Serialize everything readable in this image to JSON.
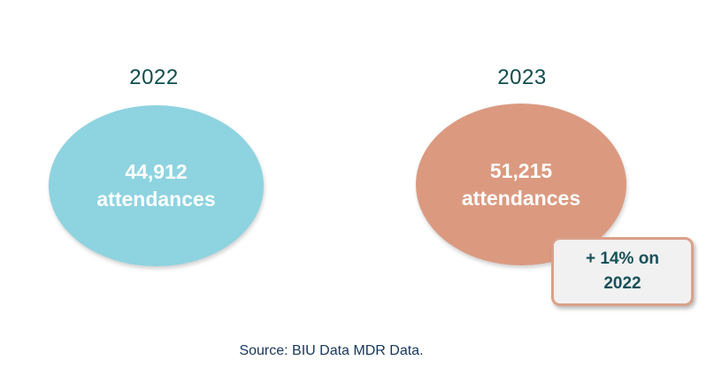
{
  "colors": {
    "year_text": "#0f4d4d",
    "ellipse_2022": "#8ed3e0",
    "ellipse_2023": "#db9a80",
    "callout_border": "#dba08a",
    "callout_bg": "#f1f1f1",
    "callout_text": "#17505a",
    "source_text": "#17365d"
  },
  "years": [
    {
      "year": "2022",
      "count": "44,912",
      "unit": "attendances"
    },
    {
      "year": "2023",
      "count": "51,215",
      "unit": "attendances"
    }
  ],
  "change_callout": {
    "line1": "+ 14% on",
    "line2": "2022"
  },
  "source": "Source: BIU Data MDR Data."
}
